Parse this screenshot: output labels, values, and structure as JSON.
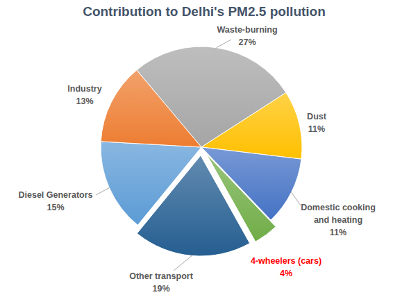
{
  "chart_data": {
    "type": "pie",
    "title": "Contribution to Delhi's PM2.5 pollution",
    "categories": [
      "Waste-burning",
      "Dust",
      "Domestic cooking and heating",
      "4-wheelers (cars)",
      "Other transport",
      "Diesel Generators",
      "Industry"
    ],
    "values": [
      27,
      11,
      11,
      4,
      19,
      15,
      13
    ],
    "value_labels": [
      "27%",
      "11%",
      "11%",
      "4%",
      "19%",
      "15%",
      "13%"
    ],
    "colors": [
      "#a5a5a5",
      "#ffc000",
      "#4472c4",
      "#70ad47",
      "#255e91",
      "#5b9bd5",
      "#ed7d31"
    ],
    "data_labels": true
  }
}
